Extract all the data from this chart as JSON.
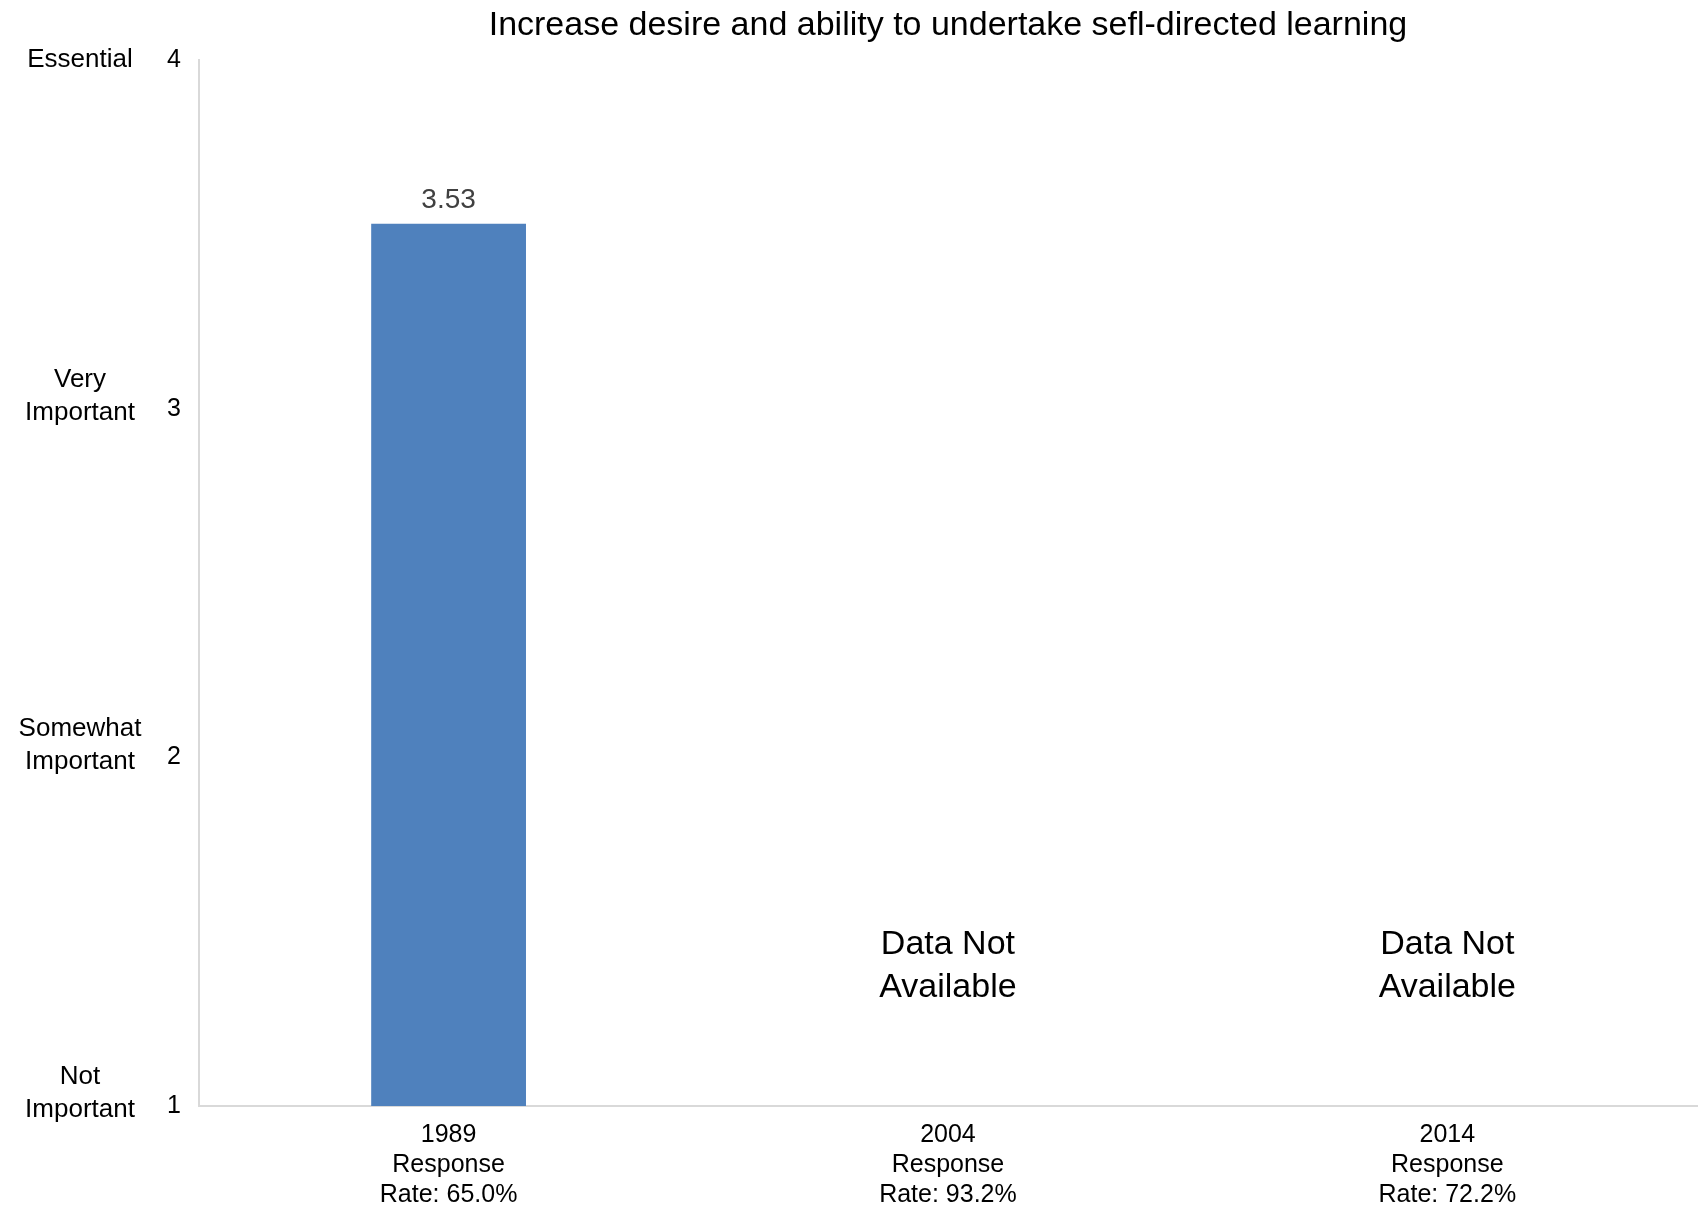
{
  "chart_data": {
    "type": "bar",
    "title": "Increase desire and ability to undertake sefl-directed learning",
    "categories": [
      "1989 Response Rate: 65.0%",
      "2004 Response Rate: 93.2%",
      "2014 Response Rate: 72.2%"
    ],
    "values": [
      3.53,
      null,
      null
    ],
    "color": "#4f81bd",
    "ylim": [
      1,
      4
    ],
    "yticks": [
      1,
      2,
      3,
      4
    ],
    "data_labels": true,
    "grid": false,
    "legend": false,
    "annotations": [
      "Not Important",
      "Somewhat Important",
      "Very Important",
      "Essential",
      "Data Not Available",
      "Data Not Available"
    ]
  }
}
